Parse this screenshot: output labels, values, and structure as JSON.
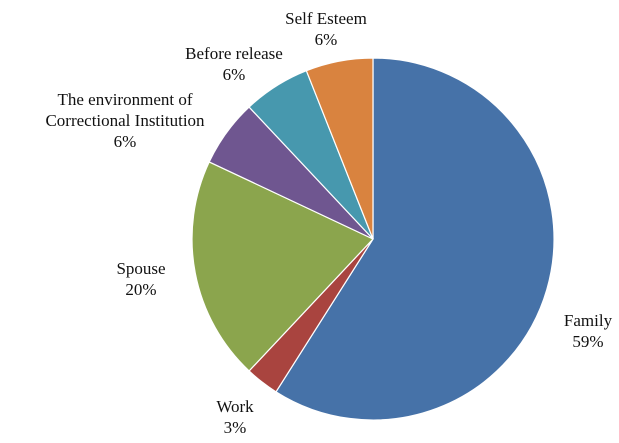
{
  "chart_data": {
    "type": "pie",
    "title": "",
    "start_angle_deg": 0,
    "direction": "clockwise",
    "slices": [
      {
        "label": "Family",
        "value_label": "59%",
        "value": 59,
        "color": "#4672A8"
      },
      {
        "label": "Work",
        "value_label": "3%",
        "value": 3,
        "color": "#A9443F"
      },
      {
        "label": "Spouse",
        "value_label": "20%",
        "value": 20,
        "color": "#8BA54D"
      },
      {
        "label": "The environment of Correctional Institution",
        "label_lines": [
          "The environment of",
          "Correctional Institution"
        ],
        "value_label": "6%",
        "value": 6,
        "color": "#6F5690"
      },
      {
        "label": "Before release",
        "value_label": "6%",
        "value": 6,
        "color": "#4798AE"
      },
      {
        "label": "Self Esteem",
        "value_label": "6%",
        "value": 6,
        "color": "#D9833F"
      }
    ]
  }
}
